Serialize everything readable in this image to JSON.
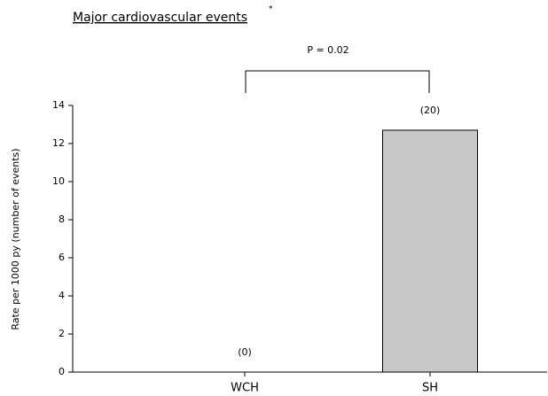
{
  "chart_data": {
    "type": "bar",
    "title": "Major cardiovascular events",
    "title_marker": "*",
    "y_label": "Rate per 1000 py (number of events)",
    "categories": [
      "WCH",
      "SH"
    ],
    "values": [
      0,
      12.7
    ],
    "count_labels": [
      "(0)",
      "(20)"
    ],
    "color": "#c8c8c8",
    "ylim": [
      0,
      14
    ],
    "yticks": [
      0,
      2,
      4,
      6,
      8,
      10,
      12,
      14
    ],
    "comparison": "P = 0.02"
  }
}
